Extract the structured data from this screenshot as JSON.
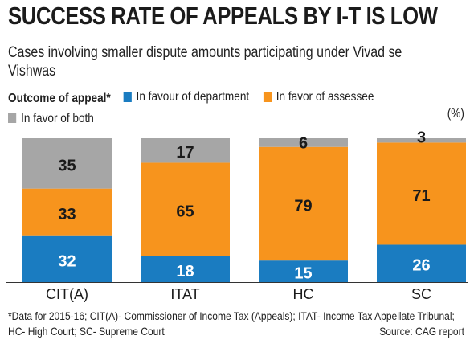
{
  "title": "SUCCESS RATE OF APPEALS BY I-T IS LOW",
  "subtitle": "Cases involving smaller dispute amounts participating under Vivad se Vishwas",
  "legend_lead": "Outcome of appeal*",
  "unit": "(%)",
  "footnote": "*Data for 2015-16; CIT(A)- Commissioner of Income Tax (Appeals); ITAT- Income Tax Appellate Tribunal; HC- High Court; SC- Supreme Court",
  "source": "Source: CAG report",
  "chart_data": {
    "type": "bar",
    "stacked": true,
    "categories": [
      "CIT(A)",
      "ITAT",
      "HC",
      "SC"
    ],
    "series": [
      {
        "name": "In favour of department",
        "color": "#1a7cc1",
        "values": [
          32,
          18,
          15,
          26
        ]
      },
      {
        "name": "In favor of assessee",
        "color": "#f7941d",
        "values": [
          33,
          65,
          79,
          71
        ]
      },
      {
        "name": "In favor of both",
        "color": "#a6a6a6",
        "values": [
          35,
          17,
          6,
          3
        ]
      }
    ],
    "ylim": [
      0,
      100
    ],
    "legend_position": "top",
    "grid": false
  }
}
